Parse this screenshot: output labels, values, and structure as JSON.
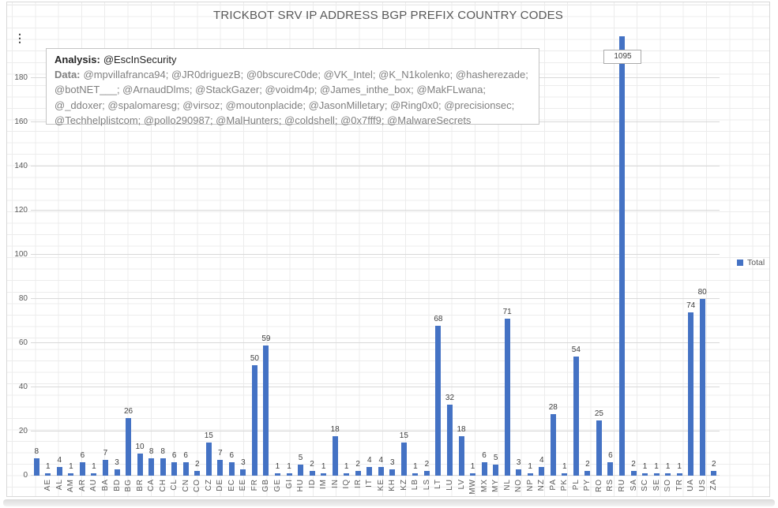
{
  "chart": {
    "icons": {
      "kebab": "⋮"
    },
    "annotation": {
      "analysis_label": "Analysis:",
      "analysis_text": "@EscInSecurity",
      "data_label": "Data:",
      "data_lines": [
        "@mpvillafranca94; @JR0driguezB; @0bscureC0de; @VK_Intel; @K_N1kolenko; @hasherezade;",
        "@botNET___; @ArnaudDlms; @StackGazer; @voidm4p; @James_inthe_box; @MakFLwana;",
        "@_ddoxer; @spalomaresg; @virsoz; @moutonplacide; @JasonMilletary; @Ring0x0; @precisionsec;",
        "@Techhelplistcom; @pollo290987; @MalHunters; @coldshell; @0x7fff9; @MalwareSecrets"
      ]
    }
  },
  "chart_data": {
    "type": "bar",
    "title": "TRICKBOT SRV IP ADDRESS BGP PREFIX COUNTRY CODES",
    "series_name": "Total",
    "bar_color": "#4472C4",
    "legend_position": "right",
    "grid": true,
    "ylim": [
      0,
      199
    ],
    "yticks": [
      0,
      20,
      40,
      60,
      80,
      100,
      120,
      140,
      160,
      180
    ],
    "categories": [
      "",
      "AE",
      "AL",
      "AM",
      "AR",
      "AU",
      "BA",
      "BD",
      "BG",
      "BR",
      "CA",
      "CH",
      "CL",
      "CN",
      "CO",
      "CZ",
      "DE",
      "EC",
      "EE",
      "FR",
      "GB",
      "GE",
      "GI",
      "HU",
      "ID",
      "IM",
      "IN",
      "IQ",
      "IR",
      "IT",
      "KE",
      "KH",
      "KZ",
      "LB",
      "LS",
      "LT",
      "LU",
      "LV",
      "MW",
      "MX",
      "MY",
      "NL",
      "NO",
      "NP",
      "NZ",
      "PA",
      "PK",
      "PL",
      "PY",
      "RO",
      "RS",
      "RU",
      "SA",
      "SC",
      "SE",
      "SO",
      "TR",
      "UA",
      "US",
      "ZA"
    ],
    "values": [
      8,
      1,
      4,
      1,
      6,
      1,
      7,
      3,
      26,
      10,
      8,
      8,
      6,
      6,
      2,
      15,
      7,
      6,
      3,
      50,
      59,
      1,
      1,
      5,
      2,
      1,
      18,
      1,
      2,
      4,
      4,
      3,
      15,
      1,
      2,
      68,
      32,
      18,
      1,
      6,
      5,
      71,
      3,
      1,
      4,
      28,
      1,
      54,
      2,
      25,
      6,
      1095,
      2,
      1,
      1,
      1,
      1,
      74,
      80,
      2
    ],
    "clipped_bar": {
      "category": "RU",
      "value": 1095,
      "callout_label": "1095"
    }
  }
}
